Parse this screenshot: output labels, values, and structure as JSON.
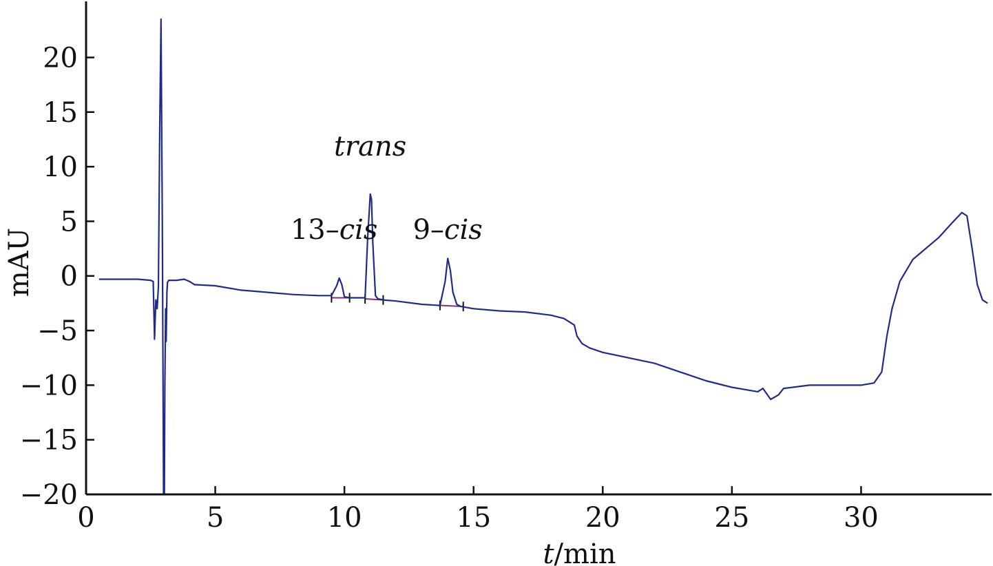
{
  "chart_data": {
    "type": "line",
    "xlabel_italic": "t",
    "xlabel_rest": "/min",
    "ylabel": "mAU",
    "xlim": [
      0,
      35
    ],
    "ylim": [
      -20,
      24
    ],
    "xticks": [
      0,
      5,
      10,
      15,
      20,
      25,
      30
    ],
    "xtick_labels": [
      "0",
      "5",
      "10",
      "15",
      "20",
      "25",
      "30"
    ],
    "yticks": [
      20,
      15,
      10,
      5,
      0,
      -5,
      -10,
      -15,
      -20
    ],
    "ytick_labels": [
      "20",
      "15",
      "10",
      "5",
      "0",
      "−5",
      "−10",
      "−15",
      "−20"
    ],
    "grid": false,
    "colors": {
      "trace": "#1f2a8a",
      "baseline": "#8a2a7a",
      "axis": "#111111"
    },
    "annotations": [
      {
        "prefix": "",
        "italic": "trans",
        "x": 11.0,
        "y": 11.0
      },
      {
        "prefix": "13–",
        "italic": "cis",
        "x": 9.6,
        "y": 3.4
      },
      {
        "prefix": "9–",
        "italic": "cis",
        "x": 14.0,
        "y": 3.4
      }
    ],
    "series": [
      {
        "x": [
          0.5,
          1,
          1.5,
          2,
          2.5,
          2.6,
          2.65,
          2.7,
          2.75,
          2.8,
          2.85,
          2.9,
          2.95,
          3.0,
          3.03,
          3.05,
          3.08,
          3.1,
          3.13,
          3.15,
          3.2,
          3.3,
          3.5,
          3.8,
          4.0,
          4.2,
          5,
          6,
          7,
          8,
          9,
          9.5,
          9.7,
          9.8,
          9.9,
          10.0,
          10.2,
          10.5,
          10.8,
          10.9,
          11.0,
          11.05,
          11.1,
          11.2,
          11.3,
          11.5,
          12,
          13,
          13.7,
          13.9,
          14.0,
          14.1,
          14.2,
          14.35,
          14.5,
          15,
          16,
          17,
          18,
          18.5,
          18.9,
          19.0,
          19.2,
          19.5,
          20,
          21,
          22,
          23,
          24,
          25,
          25.5,
          26,
          26.2,
          26.5,
          26.8,
          27,
          28,
          29,
          30,
          30.5,
          30.8,
          31,
          31.2,
          31.5,
          32,
          33,
          33.5,
          33.9,
          34.1,
          34.3,
          34.5,
          34.7,
          34.9
        ],
        "y": [
          -0.3,
          -0.3,
          -0.3,
          -0.3,
          -0.4,
          -0.5,
          -5.8,
          -2.2,
          -3.0,
          -1.0,
          13.0,
          23.5,
          5.0,
          -20.0,
          -20.0,
          -10.0,
          -3.0,
          -6.0,
          -1.5,
          -0.6,
          -0.4,
          -0.4,
          -0.4,
          -0.3,
          -0.5,
          -0.8,
          -0.9,
          -1.3,
          -1.5,
          -1.7,
          -1.8,
          -1.8,
          -0.9,
          -0.2,
          -0.8,
          -1.9,
          -2.0,
          -2.0,
          -2.0,
          3.5,
          7.5,
          7.0,
          3.0,
          -1.8,
          -2.1,
          -2.2,
          -2.3,
          -2.6,
          -2.7,
          -0.5,
          1.6,
          0.5,
          -1.5,
          -2.6,
          -2.8,
          -3.0,
          -3.2,
          -3.3,
          -3.6,
          -3.9,
          -4.5,
          -5.5,
          -6.2,
          -6.6,
          -7.0,
          -7.5,
          -8.0,
          -8.8,
          -9.6,
          -10.2,
          -10.4,
          -10.6,
          -10.3,
          -11.3,
          -10.9,
          -10.3,
          -10.0,
          -10.0,
          -10.0,
          -9.8,
          -8.8,
          -5.5,
          -3.0,
          -0.5,
          1.5,
          3.5,
          4.8,
          5.8,
          5.5,
          2.5,
          -0.8,
          -2.2,
          -2.5
        ]
      }
    ]
  }
}
